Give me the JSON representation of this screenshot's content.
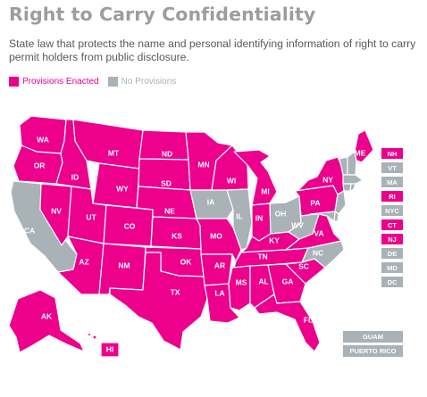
{
  "title": "Right to Carry Confidentiality",
  "subtitle": "State law that protects the name and personal identifying information of right to carry permit holders from public disclosure.",
  "colors": {
    "enacted": "#ec008c",
    "none": "#a8b2b7"
  },
  "legend": [
    {
      "label": "Provisions Enacted",
      "color": "#ec008c"
    },
    {
      "label": "No Provisions",
      "color": "#a8b2b7"
    }
  ],
  "states": {
    "WA": "enacted",
    "OR": "enacted",
    "CA": "none",
    "ID": "enacted",
    "NV": "enacted",
    "MT": "enacted",
    "WY": "enacted",
    "UT": "enacted",
    "AZ": "enacted",
    "CO": "enacted",
    "NM": "enacted",
    "ND": "enacted",
    "SD": "enacted",
    "NE": "enacted",
    "KS": "enacted",
    "OK": "enacted",
    "TX": "enacted",
    "MN": "enacted",
    "IA": "none",
    "MO": "enacted",
    "AR": "enacted",
    "LA": "enacted",
    "WI": "enacted",
    "IL": "none",
    "MI": "enacted",
    "IN": "enacted",
    "OH": "none",
    "KY": "enacted",
    "TN": "enacted",
    "MS": "enacted",
    "AL": "enacted",
    "GA": "enacted",
    "FL": "enacted",
    "SC": "enacted",
    "NC": "none",
    "VA": "enacted",
    "WV": "none",
    "PA": "enacted",
    "NY": "enacted",
    "ME": "enacted",
    "AK": "enacted",
    "HI": "enacted"
  },
  "small_states": [
    {
      "label": "NH",
      "status": "enacted"
    },
    {
      "label": "VT",
      "status": "none"
    },
    {
      "label": "MA",
      "status": "none"
    },
    {
      "label": "RI",
      "status": "enacted"
    },
    {
      "label": "NYC",
      "status": "none"
    },
    {
      "label": "CT",
      "status": "enacted"
    },
    {
      "label": "NJ",
      "status": "enacted"
    },
    {
      "label": "DE",
      "status": "none"
    },
    {
      "label": "MD",
      "status": "none"
    },
    {
      "label": "DC",
      "status": "none"
    }
  ],
  "territories": [
    {
      "label": "GUAM",
      "status": "none"
    },
    {
      "label": "PUERTO RICO",
      "status": "none"
    }
  ]
}
